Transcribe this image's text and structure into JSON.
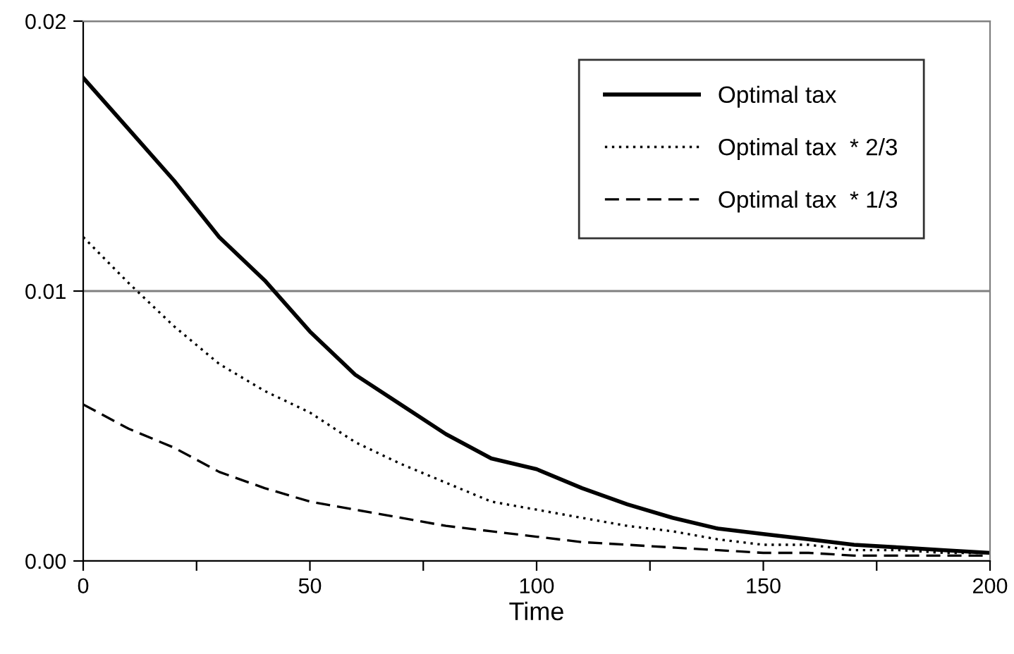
{
  "chart_data": {
    "type": "line",
    "xlabel": "Time",
    "x": [
      0,
      10,
      20,
      30,
      40,
      50,
      60,
      70,
      80,
      90,
      100,
      110,
      120,
      130,
      140,
      150,
      160,
      170,
      180,
      190,
      200
    ],
    "series": [
      {
        "name": "Optimal tax",
        "color": "#000000",
        "line_style": "solid",
        "values": [
          0.0179,
          0.016,
          0.0141,
          0.012,
          0.0104,
          0.0085,
          0.0069,
          0.0058,
          0.0047,
          0.0038,
          0.0034,
          0.0027,
          0.0021,
          0.0016,
          0.0012,
          0.001,
          0.0008,
          0.0006,
          0.0005,
          0.0004,
          0.0003
        ]
      },
      {
        "name": "Optimal tax  * 2/3",
        "color": "#000000",
        "line_style": "dotted",
        "values": [
          0.012,
          0.0103,
          0.0087,
          0.0073,
          0.0063,
          0.0055,
          0.0044,
          0.0036,
          0.0029,
          0.0022,
          0.0019,
          0.0016,
          0.0013,
          0.0011,
          0.0008,
          0.0006,
          0.0006,
          0.0004,
          0.0004,
          0.0003,
          0.0003
        ]
      },
      {
        "name": "Optimal tax  * 1/3",
        "color": "#000000",
        "line_style": "dashed",
        "values": [
          0.0058,
          0.0049,
          0.0042,
          0.0033,
          0.0027,
          0.0022,
          0.0019,
          0.0016,
          0.0013,
          0.0011,
          0.0009,
          0.0007,
          0.0006,
          0.0005,
          0.0004,
          0.0003,
          0.0003,
          0.0002,
          0.0002,
          0.0002,
          0.0002
        ]
      }
    ],
    "xlim": [
      0,
      200
    ],
    "xticks": [
      0,
      {
        "value": 25,
        "label": null
      },
      50,
      {
        "value": 75,
        "label": null
      },
      100,
      {
        "value": 125,
        "label": null
      },
      150,
      {
        "value": 175,
        "label": null
      },
      200
    ],
    "ylim": [
      0,
      0.02
    ],
    "yticks": [
      {
        "value": 0,
        "label": "0.00"
      },
      {
        "value": 0.01,
        "label": "0.01"
      },
      {
        "value": 0.02,
        "label": "0.02"
      }
    ],
    "grid": "y",
    "legend": "top right",
    "marker": "none"
  }
}
